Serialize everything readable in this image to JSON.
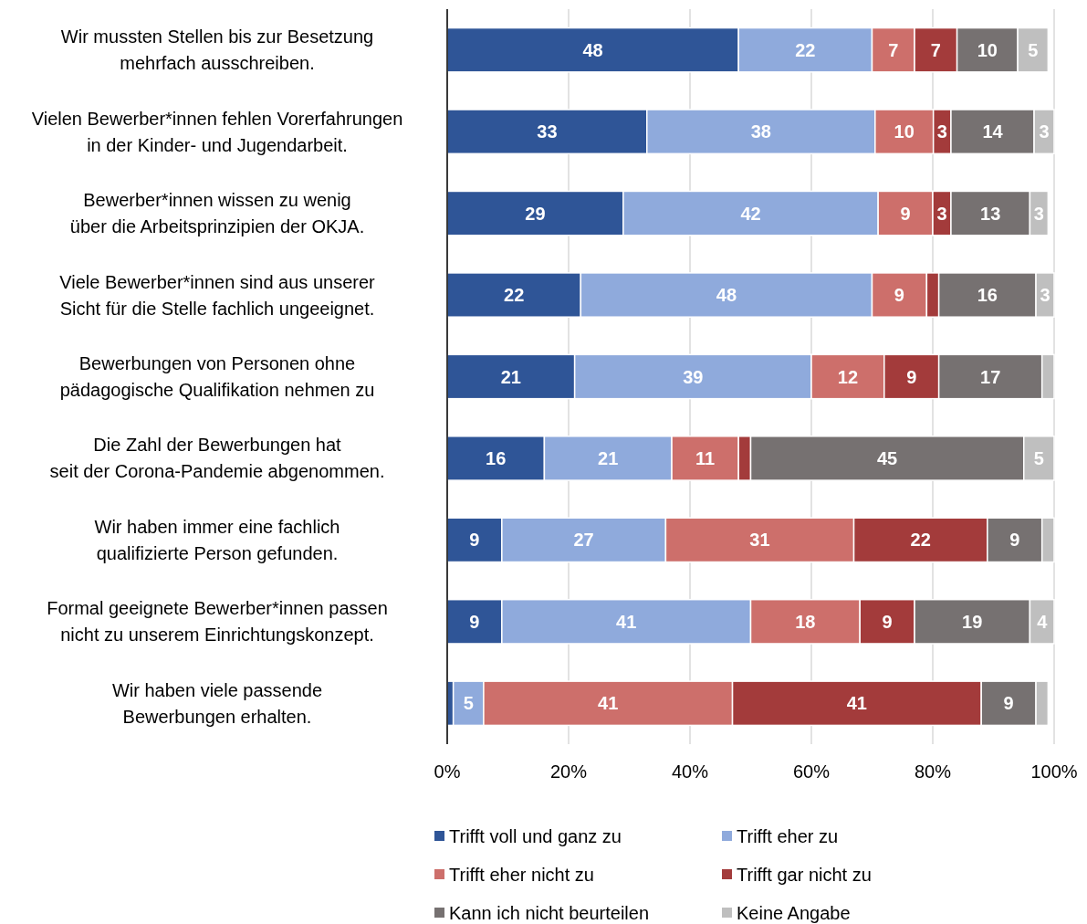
{
  "chart_data": {
    "type": "bar",
    "orientation": "horizontal",
    "stacked": true,
    "categories": [
      "Wir mussten Stellen bis zur Besetzung\nmehrfach ausschreiben.",
      "Vielen Bewerber*innen fehlen Vorerfahrungen\nin der Kinder- und Jugendarbeit.",
      "Bewerber*innen wissen zu wenig\nüber die Arbeitsprinzipien der OKJA.",
      "Viele Bewerber*innen sind aus unserer\nSicht für die Stelle fachlich ungeeignet.",
      "Bewerbungen von Personen ohne\npädagogische Qualifikation nehmen zu",
      "Die Zahl der Bewerbungen hat\nseit der Corona-Pandemie abgenommen.",
      "Wir haben immer eine fachlich\nqualifizierte Person gefunden.",
      "Formal geeignete Bewerber*innen passen\nnicht zu unserem Einrichtungskonzept.",
      "Wir haben viele passende\nBewerbungen erhalten."
    ],
    "series": [
      {
        "name": "Trifft voll und ganz zu",
        "color": "#2f5597",
        "values": [
          48,
          32.9,
          29,
          22,
          21,
          16,
          9,
          9,
          1
        ],
        "value_labels": [
          "48",
          "33",
          "29",
          "22",
          "21",
          "16",
          "9",
          "9",
          null
        ]
      },
      {
        "name": "Trifft eher zu",
        "color": "#8faadc",
        "values": [
          22,
          37.6,
          42,
          48,
          39,
          21,
          27,
          41,
          5
        ],
        "value_labels": [
          "22",
          "38",
          "42",
          "48",
          "39",
          "21",
          "27",
          "41",
          "5"
        ]
      },
      {
        "name": "Trifft eher nicht zu",
        "color": "#cd6f6b",
        "values": [
          7,
          9.6,
          9,
          9,
          12,
          11,
          31,
          18,
          41
        ],
        "value_labels": [
          "7",
          "10",
          "9",
          "9",
          "12",
          "11",
          "31",
          "18",
          "41"
        ]
      },
      {
        "name": "Trifft gar nicht zu",
        "color": "#a33b3b",
        "values": [
          7,
          2.9,
          3,
          2,
          9,
          2,
          22,
          9,
          41
        ],
        "value_labels": [
          "7",
          "3",
          "3",
          null,
          "9",
          null,
          "22",
          "9",
          "41"
        ]
      },
      {
        "name": "Kann ich nicht beurteilen",
        "color": "#767171",
        "values": [
          10,
          13.7,
          13,
          16,
          17,
          45,
          9,
          19,
          9
        ],
        "value_labels": [
          "10",
          "14",
          "13",
          "16",
          "17",
          "45",
          "9",
          "19",
          "9"
        ]
      },
      {
        "name": "Keine Angabe",
        "color": "#bfbfbf",
        "values": [
          5,
          3.3,
          3,
          3,
          2,
          5,
          2,
          4,
          2
        ],
        "value_labels": [
          "5",
          "3",
          "3",
          "3",
          null,
          "5",
          null,
          "4",
          null
        ]
      }
    ],
    "xlim": [
      0,
      100
    ],
    "xticks": [
      {
        "value": 0,
        "label": "0%"
      },
      {
        "value": 20,
        "label": "20%"
      },
      {
        "value": 40,
        "label": "40%"
      },
      {
        "value": 60,
        "label": "60%"
      },
      {
        "value": 80,
        "label": "80%"
      },
      {
        "value": 100,
        "label": "100%"
      }
    ],
    "grid": "x",
    "legend": "bottom"
  }
}
